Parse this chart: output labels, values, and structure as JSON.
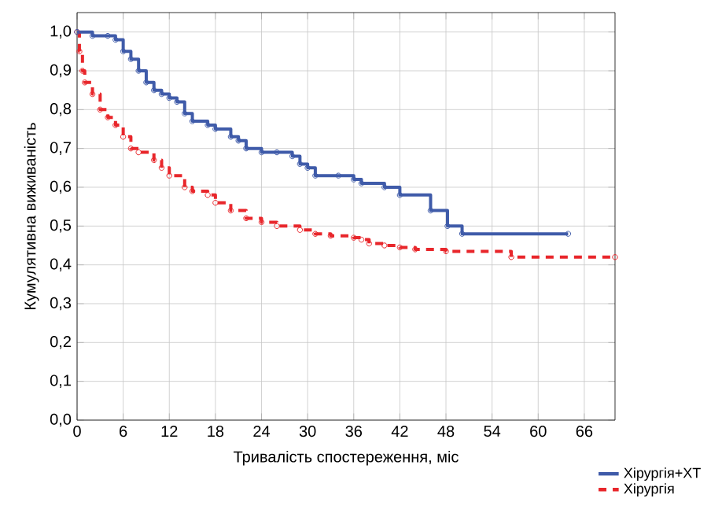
{
  "chart_data": {
    "type": "step",
    "xlabel": "Тривалість спостереження, міс",
    "ylabel": "Кумулятивна виживаність",
    "xlim": [
      0,
      70
    ],
    "xticks": [
      0,
      6,
      12,
      18,
      24,
      30,
      36,
      42,
      48,
      54,
      60,
      66
    ],
    "ylim": [
      0,
      1.05
    ],
    "yticks": [
      {
        "value": 0,
        "label": "0,0"
      },
      {
        "value": 0.1,
        "label": "0,1"
      },
      {
        "value": 0.2,
        "label": "0,2"
      },
      {
        "value": 0.3,
        "label": "0,3"
      },
      {
        "value": 0.4,
        "label": "0,4"
      },
      {
        "value": 0.5,
        "label": "0,5"
      },
      {
        "value": 0.6,
        "label": "0,6"
      },
      {
        "value": 0.7,
        "label": "0,7"
      },
      {
        "value": 0.8,
        "label": "0,8"
      },
      {
        "value": 0.9,
        "label": "0,9"
      },
      {
        "value": 1.0,
        "label": "1,0"
      }
    ],
    "grid": true,
    "legend": "bottom right",
    "marker": "circle",
    "series": [
      {
        "name": "Хірургія+ХТ",
        "color": "#3f5ba9",
        "line_style": "solid",
        "x": [
          0,
          2,
          4,
          5,
          6,
          7,
          8,
          9,
          10,
          11,
          12,
          13,
          14,
          15,
          17,
          18,
          20,
          21,
          22,
          24,
          26,
          28,
          29,
          30,
          31,
          34,
          36,
          37,
          40,
          42,
          46,
          48.2,
          50.1,
          63.9
        ],
        "values": [
          1.0,
          0.99,
          0.99,
          0.98,
          0.95,
          0.93,
          0.9,
          0.87,
          0.85,
          0.84,
          0.83,
          0.82,
          0.79,
          0.77,
          0.76,
          0.75,
          0.73,
          0.72,
          0.7,
          0.69,
          0.69,
          0.68,
          0.66,
          0.65,
          0.63,
          0.63,
          0.62,
          0.61,
          0.6,
          0.58,
          0.54,
          0.5,
          0.48,
          0.48
        ]
      },
      {
        "name": "Хірургія",
        "color": "#e8262b",
        "line_style": "dashed",
        "x": [
          0,
          0.3,
          0.7,
          1,
          2,
          3,
          4,
          5,
          6,
          7,
          8,
          10,
          11,
          12,
          14,
          15,
          17,
          18,
          20,
          22,
          24,
          26,
          29,
          31,
          33,
          36,
          37,
          38,
          40,
          42,
          44,
          48,
          56.5,
          70
        ],
        "values": [
          1.0,
          0.95,
          0.9,
          0.87,
          0.84,
          0.8,
          0.78,
          0.76,
          0.73,
          0.7,
          0.69,
          0.67,
          0.65,
          0.63,
          0.6,
          0.59,
          0.58,
          0.56,
          0.54,
          0.52,
          0.51,
          0.5,
          0.49,
          0.48,
          0.475,
          0.47,
          0.465,
          0.455,
          0.45,
          0.445,
          0.44,
          0.435,
          0.42,
          0.42
        ]
      }
    ]
  }
}
